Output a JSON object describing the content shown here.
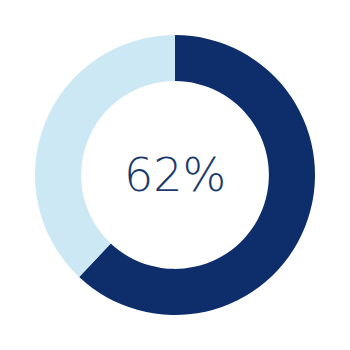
{
  "chart_data": {
    "type": "pie",
    "values": [
      62,
      38
    ],
    "colors": [
      "#0d2d6b",
      "#cce8f4"
    ],
    "annotations": [
      {
        "text": "62%",
        "color": "#1a3a6b"
      }
    ]
  }
}
